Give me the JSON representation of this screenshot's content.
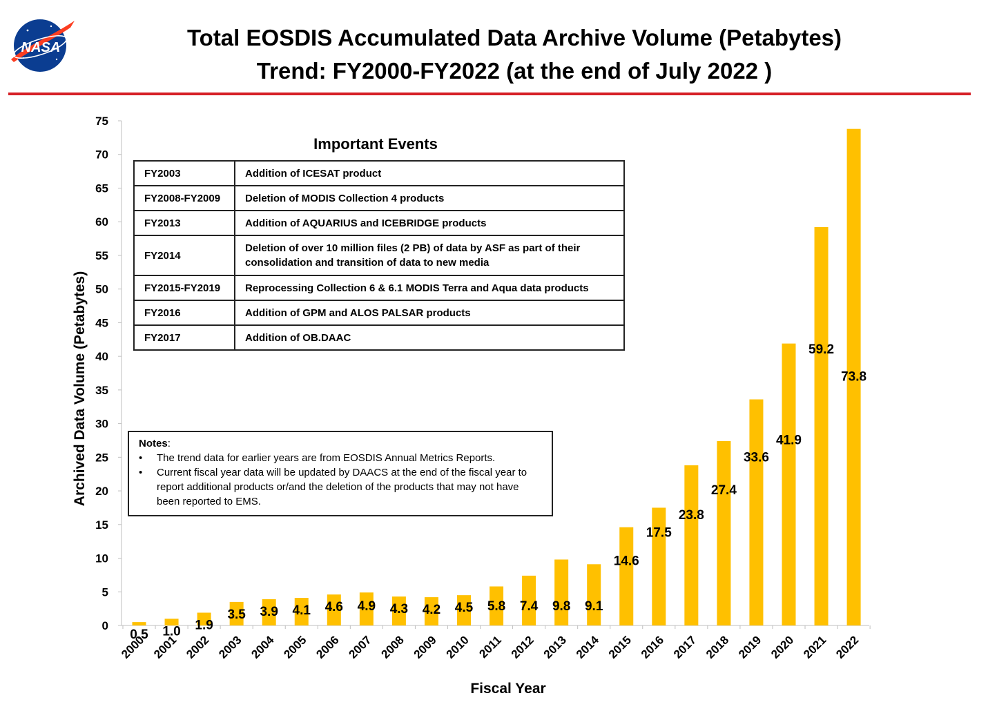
{
  "header": {
    "logo_text": "NASA",
    "title_line1": "Total EOSDIS Accumulated Data Archive Volume (Petabytes)",
    "title_line2": "Trend: FY2000-FY2022 (at the end of July 2022 )"
  },
  "colors": {
    "bar": "#FFC000",
    "header_rule": "#D61F26",
    "logo_blue": "#0B3D91",
    "logo_red": "#FC3D21"
  },
  "events": {
    "title": "Important Events",
    "rows": [
      {
        "period": "FY2003",
        "event": "Addition of ICESAT product"
      },
      {
        "period": "FY2008-FY2009",
        "event": "Deletion of  MODIS Collection 4 products"
      },
      {
        "period": "FY2013",
        "event": "Addition of AQUARIUS and ICEBRIDGE products"
      },
      {
        "period": "FY2014",
        "event": "Deletion of over 10 million files (2 PB) of data by ASF as part of their consolidation and transition of data to new media"
      },
      {
        "period": "FY2015-FY2019",
        "event": "Reprocessing  Collection 6 & 6.1 MODIS Terra and Aqua data products"
      },
      {
        "period": "FY2016",
        "event": "Addition of GPM and ALOS PALSAR products"
      },
      {
        "period": "FY2017",
        "event": "Addition of OB.DAAC"
      }
    ]
  },
  "notes": {
    "heading": "Notes",
    "items": [
      "The trend data for earlier years are from EOSDIS Annual Metrics Reports.",
      "Current fiscal year data will be updated by DAACS at the end of the fiscal year to report additional products or/and the deletion of the products that may not have been reported to EMS."
    ]
  },
  "chart_data": {
    "type": "bar",
    "title": "Total EOSDIS Accumulated Data Archive Volume (Petabytes) Trend: FY2000-FY2022 (at the end of July 2022 )",
    "xlabel": "Fiscal Year",
    "ylabel": "Archived Data Volume (Petabytes)",
    "categories": [
      "2000",
      "2001",
      "2002",
      "2003",
      "2004",
      "2005",
      "2006",
      "2007",
      "2008",
      "2009",
      "2010",
      "2011",
      "2012",
      "2013",
      "2014",
      "2015",
      "2016",
      "2017",
      "2018",
      "2019",
      "2020",
      "2021",
      "2022"
    ],
    "values": [
      0.5,
      1.0,
      1.9,
      3.5,
      3.9,
      4.1,
      4.6,
      4.9,
      4.3,
      4.2,
      4.5,
      5.8,
      7.4,
      9.8,
      9.1,
      14.6,
      17.5,
      23.8,
      27.4,
      33.6,
      41.9,
      59.2,
      73.8
    ],
    "data_labels": [
      "0.5",
      "1.0",
      "1.9",
      "3.5",
      "3.9",
      "4.1",
      "4.6",
      "4.9",
      "4.3",
      "4.2",
      "4.5",
      "5.8",
      "7.4",
      "9.8",
      "9.1",
      "14.6",
      "17.5",
      "23.8",
      "27.4",
      "33.6",
      "41.9",
      "59.2",
      "73.8"
    ],
    "ylim": [
      0,
      75
    ],
    "yticks": [
      0,
      5,
      10,
      15,
      20,
      25,
      30,
      35,
      40,
      45,
      50,
      55,
      60,
      65,
      70,
      75
    ],
    "grid": false,
    "legend": false
  }
}
